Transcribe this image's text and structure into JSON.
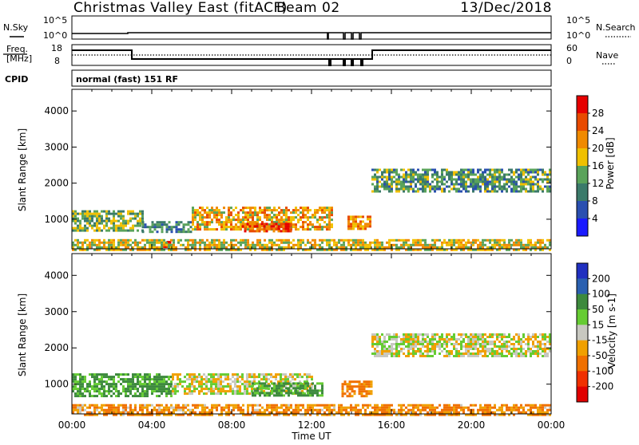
{
  "header": {
    "station": "Christmas Valley East (fitACF)",
    "beam": "Beam 02",
    "date": "13/Dec/2018"
  },
  "status_panels": {
    "nsky_label": "N.Sky",
    "nsearch_label": "N.Search",
    "noise_ticks": [
      "10^5",
      "10^0"
    ],
    "freq_label_top": "Freq.",
    "freq_label_bottom": "[MHz]",
    "freq_ticks": [
      "18",
      "8"
    ],
    "nave_label": "Nave",
    "nave_ticks": [
      "60",
      "0"
    ],
    "cpid_label": "CPID",
    "cpid_value": "normal (fast) 151 RF"
  },
  "colors": {
    "background": "#ffffff",
    "power_scale": [
      "#1a1aff",
      "#2a4fb0",
      "#3b7a6a",
      "#5aa35a",
      "#f0c000",
      "#f08a00",
      "#e84a00",
      "#e60000"
    ],
    "velocity_scale": [
      "#2030c0",
      "#2a60b0",
      "#3d8a3d",
      "#66cc33",
      "#c8c8c0",
      "#f0a000",
      "#f07000",
      "#f03000",
      "#e00000"
    ]
  },
  "chart_data": [
    {
      "type": "heatmap",
      "title": "Power",
      "xlabel": "",
      "ylabel": "Slant Range [km]",
      "colorbar_label": "Power [dB]",
      "colorbar_ticks": [
        "28",
        "24",
        "20",
        "16",
        "12",
        "8",
        "4"
      ],
      "xlim": [
        0,
        24
      ],
      "ylim": [
        180,
        4600
      ],
      "yticks": [
        "1000",
        "2000",
        "3000",
        "4000"
      ],
      "regions": [
        {
          "x": [
            0,
            3.5
          ],
          "y": [
            700,
            1250
          ],
          "value_db": 16
        },
        {
          "x": [
            3.5,
            6.0
          ],
          "y": [
            650,
            950
          ],
          "value_db": 12
        },
        {
          "x": [
            6.0,
            13.0
          ],
          "y": [
            750,
            1350
          ],
          "value_db": 22
        },
        {
          "x": [
            8.5,
            11.0
          ],
          "y": [
            700,
            900
          ],
          "value_db": 28
        },
        {
          "x": [
            4.5,
            5.0
          ],
          "y": [
            220,
            400
          ],
          "value_db": 28
        },
        {
          "x": [
            13.8,
            15.0
          ],
          "y": [
            750,
            1100
          ],
          "value_db": 24
        },
        {
          "x": [
            15.0,
            24.0
          ],
          "y": [
            1800,
            2400
          ],
          "value_db": 14
        },
        {
          "x": [
            0,
            24
          ],
          "y": [
            180,
            450
          ],
          "value_db": 20
        }
      ]
    },
    {
      "type": "heatmap",
      "title": "Velocity",
      "xlabel": "Time UT",
      "ylabel": "Slant Range [km]",
      "colorbar_label": "Velocity [m s-1]",
      "colorbar_ticks": [
        "200",
        "100",
        "50",
        "15",
        "-15",
        "-50",
        "-100",
        "-200"
      ],
      "xlim": [
        0,
        24
      ],
      "ylim": [
        180,
        4600
      ],
      "xticks": [
        "00:00",
        "04:00",
        "08:00",
        "12:00",
        "16:00",
        "20:00",
        "00:00"
      ],
      "yticks": [
        "1000",
        "2000",
        "3000",
        "4000"
      ],
      "regions": [
        {
          "x": [
            0,
            5.0
          ],
          "y": [
            700,
            1300
          ],
          "value_ms": 40
        },
        {
          "x": [
            5.0,
            12.0
          ],
          "y": [
            750,
            1300
          ],
          "value_ms": 0
        },
        {
          "x": [
            9.0,
            12.5
          ],
          "y": [
            700,
            1050
          ],
          "value_ms": 40
        },
        {
          "x": [
            13.5,
            15.0
          ],
          "y": [
            700,
            1100
          ],
          "value_ms": -40
        },
        {
          "x": [
            15.0,
            24.0
          ],
          "y": [
            1800,
            2400
          ],
          "value_ms": 0
        },
        {
          "x": [
            0,
            24
          ],
          "y": [
            180,
            450
          ],
          "value_ms": -30
        }
      ]
    }
  ]
}
